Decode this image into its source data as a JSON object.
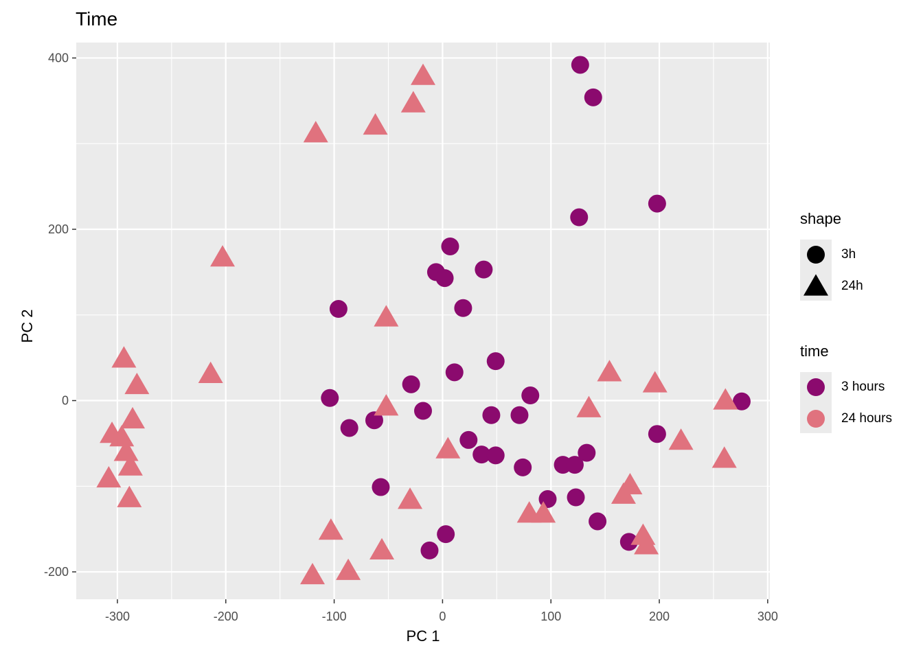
{
  "chart_data": {
    "type": "scatter",
    "title": "Time",
    "xlabel": "PC 1",
    "ylabel": "PC 2",
    "xlim": [
      -338,
      302
    ],
    "ylim": [
      -232,
      418
    ],
    "x_ticks": [
      -300,
      -200,
      -100,
      0,
      100,
      200,
      300
    ],
    "y_ticks": [
      -200,
      0,
      200,
      400
    ],
    "x_tick_labels": [
      "-300",
      "-200",
      "-100",
      "0",
      "100",
      "200",
      "300"
    ],
    "y_tick_labels": [
      "-200",
      "0",
      "200",
      "400"
    ],
    "grid": true,
    "legend_position": "right",
    "colors": {
      "panel": "#ebebeb",
      "grid": "#ffffff",
      "3 hours": "#8b0a6e",
      "24 hours": "#e0727e"
    },
    "legends": [
      {
        "title": "shape",
        "entries": [
          {
            "label": "3h",
            "shape": "circle"
          },
          {
            "label": "24h",
            "shape": "triangle"
          }
        ]
      },
      {
        "title": "time",
        "entries": [
          {
            "label": "3 hours",
            "color": "#8b0a6e"
          },
          {
            "label": "24 hours",
            "color": "#e0727e"
          }
        ]
      }
    ],
    "series": [
      {
        "name": "3 hours",
        "shape": "3h",
        "points": [
          [
            127,
            392
          ],
          [
            139,
            354
          ],
          [
            198,
            230
          ],
          [
            126,
            214
          ],
          [
            7,
            180
          ],
          [
            -6,
            150
          ],
          [
            2,
            143
          ],
          [
            38,
            153
          ],
          [
            -96,
            107
          ],
          [
            19,
            108
          ],
          [
            49,
            46
          ],
          [
            11,
            33
          ],
          [
            -29,
            19
          ],
          [
            -104,
            3
          ],
          [
            81,
            6
          ],
          [
            276,
            -1
          ],
          [
            -18,
            -12
          ],
          [
            45,
            -17
          ],
          [
            71,
            -17
          ],
          [
            -63,
            -23
          ],
          [
            -86,
            -32
          ],
          [
            198,
            -39
          ],
          [
            24,
            -46
          ],
          [
            36,
            -63
          ],
          [
            49,
            -64
          ],
          [
            133,
            -61
          ],
          [
            111,
            -75
          ],
          [
            122,
            -75
          ],
          [
            74,
            -78
          ],
          [
            -57,
            -101
          ],
          [
            97,
            -115
          ],
          [
            123,
            -113
          ],
          [
            143,
            -141
          ],
          [
            172,
            -165
          ],
          [
            3,
            -156
          ],
          [
            -12,
            -175
          ]
        ]
      },
      {
        "name": "24 hours",
        "shape": "24h",
        "points": [
          [
            -18,
            381
          ],
          [
            -27,
            349
          ],
          [
            -62,
            323
          ],
          [
            -117,
            314
          ],
          [
            -203,
            169
          ],
          [
            -52,
            99
          ],
          [
            -294,
            51
          ],
          [
            -282,
            20
          ],
          [
            -214,
            33
          ],
          [
            -52,
            -5
          ],
          [
            -286,
            -20
          ],
          [
            -305,
            -37
          ],
          [
            -296,
            -41
          ],
          [
            -292,
            -58
          ],
          [
            -288,
            -75
          ],
          [
            -308,
            -89
          ],
          [
            -289,
            -112
          ],
          [
            5,
            -55
          ],
          [
            -30,
            -114
          ],
          [
            -103,
            -150
          ],
          [
            -87,
            -197
          ],
          [
            -120,
            -202
          ],
          [
            -56,
            -173
          ],
          [
            154,
            35
          ],
          [
            196,
            22
          ],
          [
            135,
            -7
          ],
          [
            220,
            -45
          ],
          [
            261,
            2
          ],
          [
            260,
            -66
          ],
          [
            173,
            -97
          ],
          [
            167,
            -108
          ],
          [
            80,
            -130
          ],
          [
            93,
            -130
          ],
          [
            185,
            -156
          ],
          [
            188,
            -167
          ]
        ]
      }
    ]
  }
}
